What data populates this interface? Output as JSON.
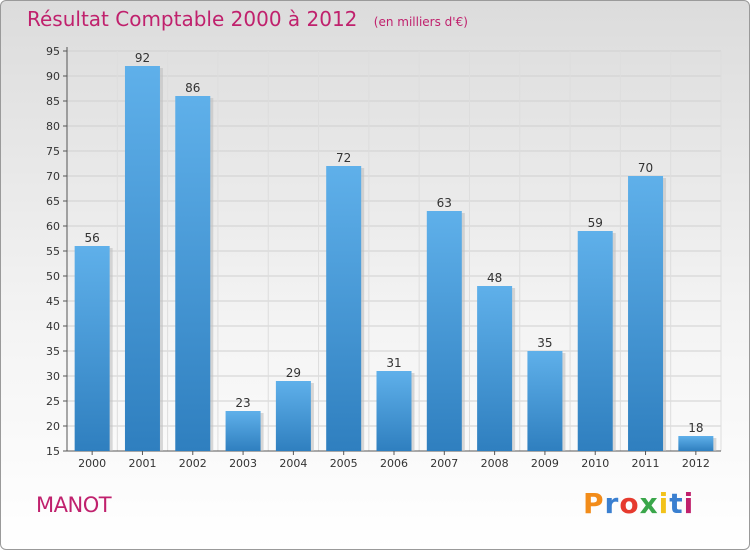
{
  "header": {
    "title": "Résultat Comptable 2000 à 2012",
    "subtitle": "(en milliers d'€)"
  },
  "footer": {
    "commune": "MANOT",
    "logo_text": "Proxiti",
    "logo_colors": [
      "#f28c1a",
      "#3a7fd0",
      "#e63a2e",
      "#3aa64a",
      "#f2c21a",
      "#3a7fd0",
      "#c0216d"
    ]
  },
  "colors": {
    "title": "#c0216d",
    "bar_top": "#5fb0ea",
    "bar_bottom": "#2f7fbf"
  },
  "chart_data": {
    "type": "bar",
    "title": "Résultat Comptable 2000 à 2012",
    "categories": [
      "2000",
      "2001",
      "2002",
      "2003",
      "2004",
      "2005",
      "2006",
      "2007",
      "2008",
      "2009",
      "2010",
      "2011",
      "2012"
    ],
    "values": [
      56,
      92,
      86,
      23,
      29,
      72,
      31,
      63,
      48,
      35,
      59,
      70,
      18
    ],
    "ylim": [
      15,
      95
    ],
    "yticks": [
      15,
      20,
      25,
      30,
      35,
      40,
      45,
      50,
      55,
      60,
      65,
      70,
      75,
      80,
      85,
      90,
      95
    ],
    "grid": true,
    "data_labels": true
  }
}
